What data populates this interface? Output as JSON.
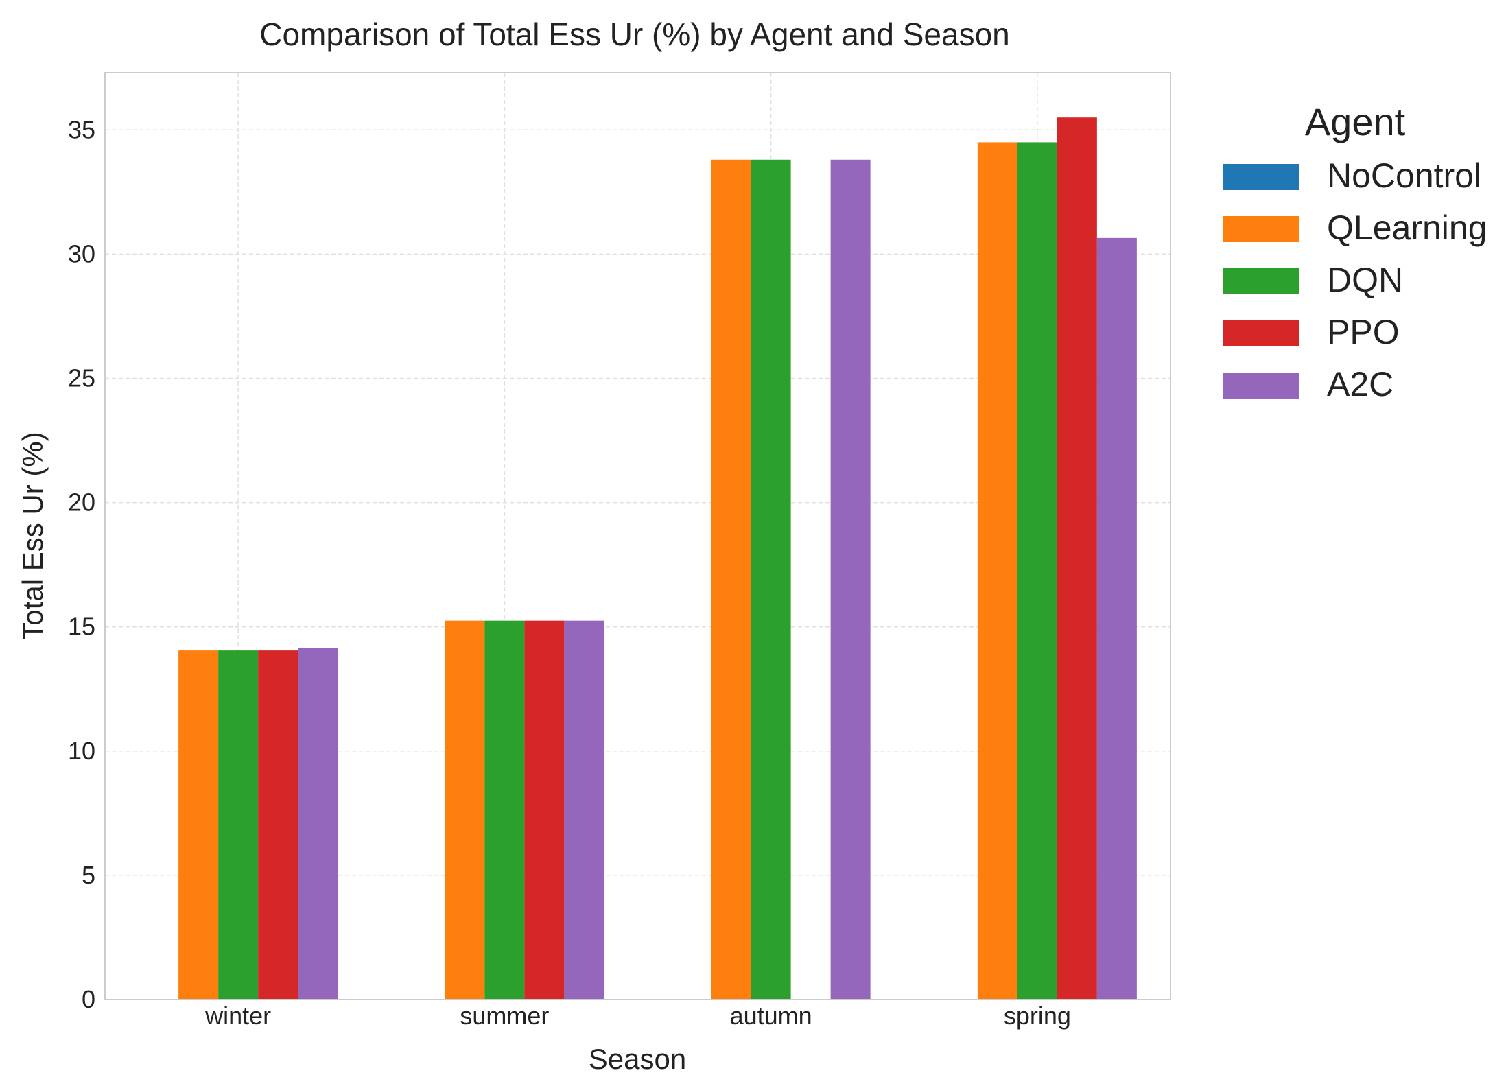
{
  "chart_data": {
    "type": "bar",
    "title": "Comparison of Total Ess Ur (%) by Agent and Season",
    "xlabel": "Season",
    "ylabel": "Total Ess Ur (%)",
    "categories": [
      "winter",
      "summer",
      "autumn",
      "spring"
    ],
    "ylim": [
      0,
      37.3
    ],
    "yticks": [
      0,
      5,
      10,
      15,
      20,
      25,
      30,
      35
    ],
    "grid": true,
    "legend_title": "Agent",
    "legend_position": "outside-right",
    "series": [
      {
        "name": "NoControl",
        "color": "#1f77b4",
        "values": [
          0,
          0,
          0,
          0
        ]
      },
      {
        "name": "QLearning",
        "color": "#ff7f0e",
        "values": [
          14.05,
          15.25,
          33.8,
          34.5
        ]
      },
      {
        "name": "DQN",
        "color": "#2ca02c",
        "values": [
          14.05,
          15.25,
          33.8,
          34.5
        ]
      },
      {
        "name": "PPO",
        "color": "#d62728",
        "values": [
          14.05,
          15.25,
          0,
          35.5
        ]
      },
      {
        "name": "A2C",
        "color": "#9467bd",
        "values": [
          14.15,
          15.25,
          33.8,
          30.65
        ]
      }
    ]
  }
}
